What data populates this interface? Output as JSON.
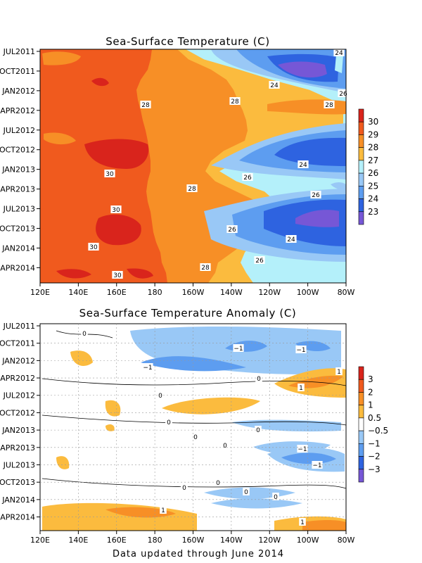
{
  "footer": "Data updated through June 2014",
  "chart_data": [
    {
      "type": "heatmap",
      "title": "Sea-Surface Temperature (C)",
      "x_ticks": [
        "120E",
        "140E",
        "160E",
        "180",
        "160W",
        "140W",
        "120W",
        "100W",
        "80W"
      ],
      "y_ticks": [
        "JUL2011",
        "OCT2011",
        "JAN2012",
        "APR2012",
        "JUL2012",
        "OCT2012",
        "JAN2013",
        "APR2013",
        "JUL2013",
        "OCT2013",
        "JAN2014",
        "APR2014"
      ],
      "time_range": [
        "JUL2011",
        "JUN2014"
      ],
      "colorbar": {
        "ticks": [
          "30",
          "29",
          "28",
          "27",
          "26",
          "25",
          "24",
          "23"
        ],
        "colors": [
          "#d9241c",
          "#f05a1e",
          "#f78f26",
          "#fbbb3e",
          "#b4f0fa",
          "#99c8f6",
          "#5d9df0",
          "#2e63e0",
          "#7657d6"
        ]
      },
      "contour_labels": [
        "24",
        "24",
        "26",
        "28",
        "28",
        "28",
        "28",
        "24",
        "26",
        "26",
        "28",
        "30",
        "30",
        "30",
        "30",
        "26",
        "24",
        "26",
        "28",
        "30"
      ],
      "bands": [
        {
          "label": "west_30_edge",
          "values": [
            154,
            150,
            157,
            160,
            158,
            156,
            160,
            162,
            157,
            150,
            148,
            150,
            156,
            160,
            164,
            168,
            170,
            160,
            164,
            158,
            156,
            160,
            158,
            160
          ]
        },
        {
          "label": "29_28_edge",
          "values": [
            216,
            214,
            210,
            200,
            194,
            196,
            200,
            203,
            207,
            210,
            212,
            214,
            214,
            210,
            208,
            210,
            214,
            216,
            218,
            222,
            228,
            230,
            236,
            238
          ]
        },
        {
          "label": "28_27_edge",
          "values": [
            252,
            268,
            300,
            322,
            332,
            338,
            345,
            350,
            352,
            348,
            318,
            300,
            292,
            306,
            336,
            366,
            376,
            376,
            370,
            350,
            330,
            310,
            306,
            296
          ]
        },
        {
          "label": "27_26_edge",
          "values": [
            264,
            290,
            340,
            386,
            440,
            472,
            488,
            488,
            488,
            468,
            396,
            338,
            312,
            336,
            376,
            392,
            400,
            398,
            386,
            360,
            348,
            342,
            350,
            360
          ]
        }
      ]
    },
    {
      "type": "heatmap",
      "title": "Sea-Surface Temperature Anomaly (C)",
      "x_ticks": [
        "120E",
        "140E",
        "160E",
        "180",
        "160W",
        "140W",
        "120W",
        "100W",
        "80W"
      ],
      "y_ticks": [
        "JUL2011",
        "OCT2011",
        "JAN2012",
        "APR2012",
        "JUL2012",
        "OCT2012",
        "JAN2013",
        "APR2013",
        "JUL2013",
        "OCT2013",
        "JAN2014",
        "APR2014"
      ],
      "time_range": [
        "JUL2011",
        "JUN2014"
      ],
      "colorbar": {
        "ticks": [
          "3",
          "2",
          "1",
          "0.5",
          "−0.5",
          "−1",
          "−2",
          "−3"
        ],
        "colors": [
          "#d9241c",
          "#f05a1e",
          "#f78f26",
          "#fbbb3e",
          "#ffffff",
          "#99c8f6",
          "#5d9df0",
          "#2e63e0",
          "#7657d6"
        ]
      },
      "contour_labels": [
        "0",
        "−1",
        "−1",
        "−1",
        "0",
        "0",
        "1",
        "1",
        "0",
        "0",
        "0",
        "0",
        "0",
        "0",
        "0",
        "−1",
        "−1",
        "0",
        "0",
        "0",
        "1",
        "1"
      ]
    }
  ]
}
